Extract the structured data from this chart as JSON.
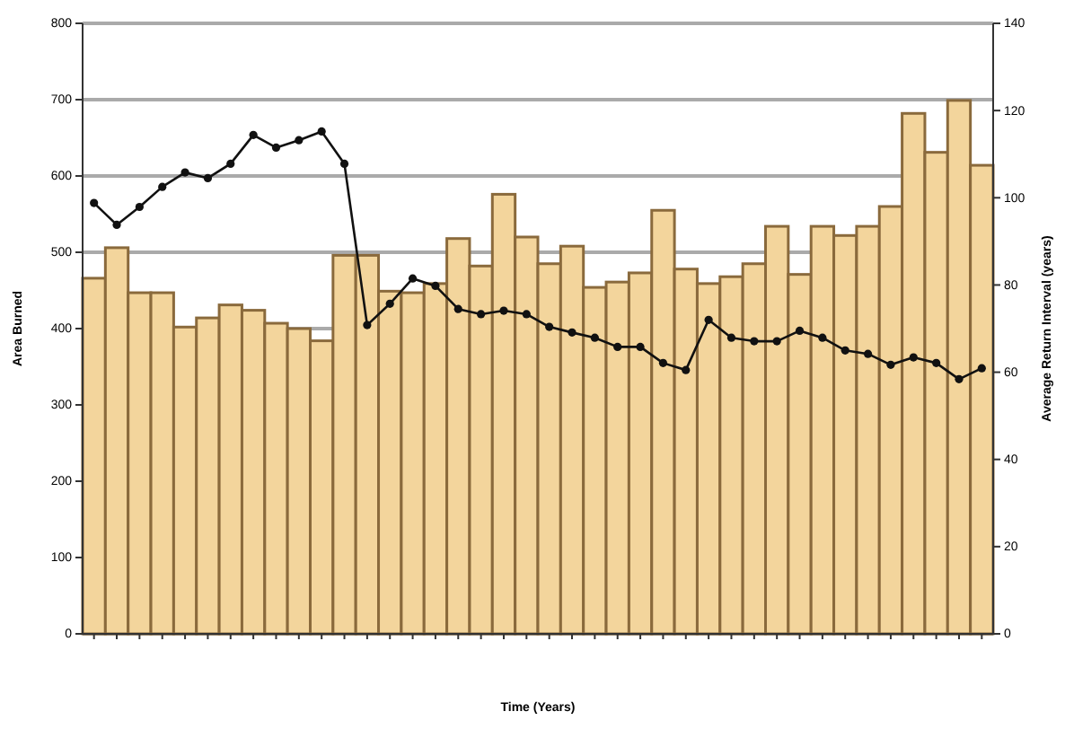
{
  "chart_data": {
    "type": "bar",
    "xlabel": "Time (Years)",
    "ylabel": "Area Burned",
    "y2label": "Average Return Interval (years)",
    "categories": [
      null,
      null,
      null,
      null,
      null,
      null,
      null,
      null,
      null,
      null,
      null,
      null,
      null,
      null,
      null,
      null,
      null,
      null,
      null,
      null,
      null,
      null,
      null,
      null,
      null,
      null,
      null,
      null,
      null,
      null,
      null,
      null,
      null,
      null,
      null,
      null,
      null,
      null,
      null,
      null
    ],
    "series": [
      {
        "color": "#f3d59c",
        "values": [
          466,
          506,
          447,
          447,
          402,
          414,
          431,
          424,
          407,
          400,
          384,
          496,
          496,
          449,
          447,
          459,
          518,
          482,
          576,
          520,
          485,
          508,
          454,
          461,
          473,
          555,
          478,
          459,
          468,
          485,
          534,
          471,
          534,
          522,
          534,
          560,
          682,
          631,
          699,
          614
        ]
      },
      {
        "type": "line",
        "axis": "y2",
        "color": "#111111",
        "values": [
          98.8,
          93.8,
          97.9,
          102.5,
          105.8,
          104.5,
          107.8,
          114.4,
          111.5,
          113.2,
          115.2,
          107.8,
          70.8,
          75.7,
          81.5,
          79.8,
          74.5,
          73.3,
          74.1,
          73.3,
          70.4,
          69.1,
          67.9,
          65.8,
          65.8,
          62.1,
          60.5,
          72.0,
          67.9,
          67.1,
          67.1,
          69.5,
          67.9,
          65.0,
          64.2,
          61.7,
          63.4,
          62.1,
          58.4,
          60.9
        ]
      }
    ],
    "ylim": [
      0,
      800
    ],
    "yticks": [
      0,
      100,
      200,
      300,
      400,
      500,
      600,
      700,
      800
    ],
    "y2lim": [
      0,
      140
    ],
    "y2ticks": [
      0,
      20,
      40,
      60,
      80,
      100,
      120,
      140
    ],
    "grid": "y",
    "marker": "circle",
    "line_style": "solid"
  }
}
